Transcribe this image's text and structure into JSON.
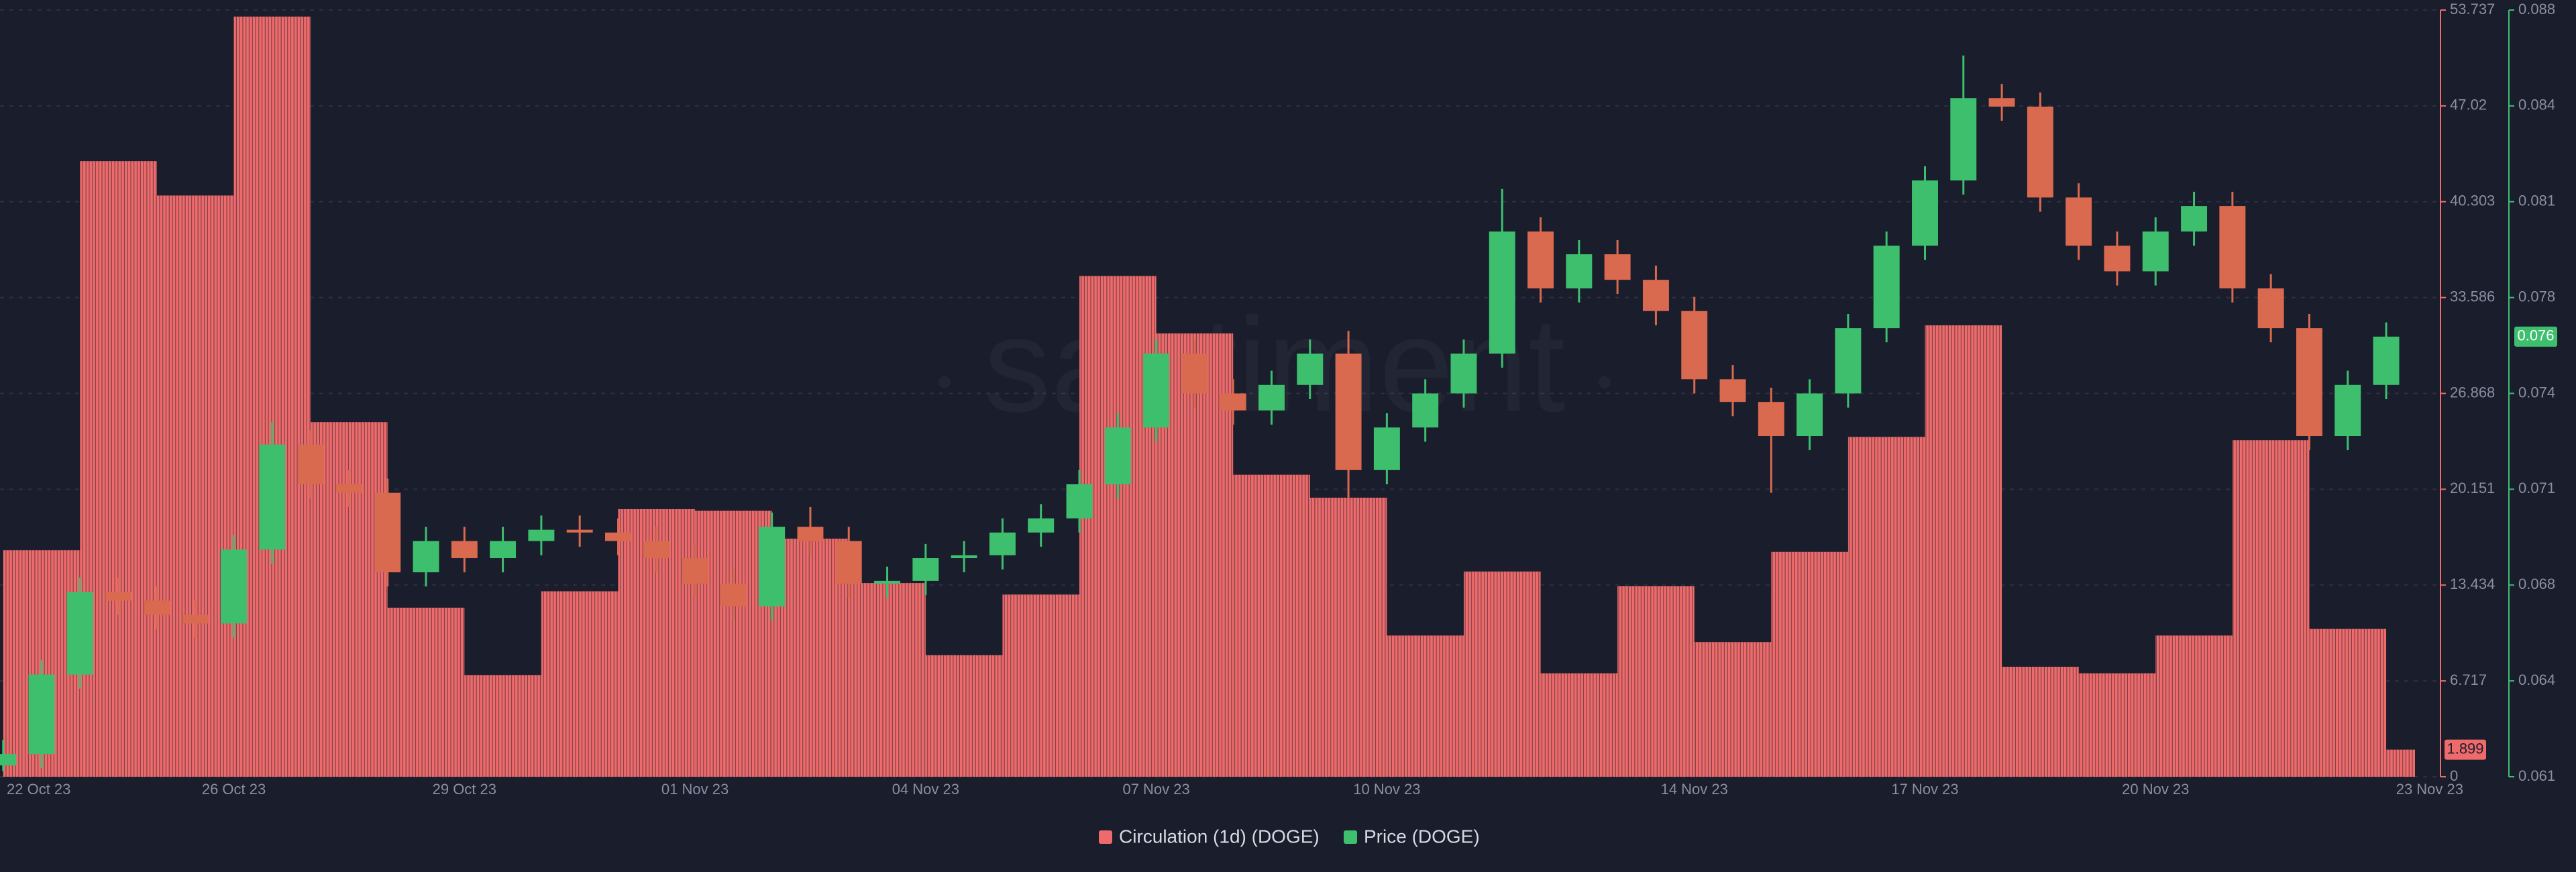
{
  "chart_data": {
    "type": "combo",
    "watermark": "santiment",
    "xlim": [
      "2023-10-22T23:00",
      "2023-11-23T09:00"
    ],
    "xticks": [
      {
        "value": "2023-10-22",
        "label": "22 Oct 23"
      },
      {
        "value": "2023-10-26",
        "label": "26 Oct 23"
      },
      {
        "value": "2023-10-29",
        "label": "29 Oct 23"
      },
      {
        "value": "2023-11-01",
        "label": "01 Nov 23"
      },
      {
        "value": "2023-11-04",
        "label": "04 Nov 23"
      },
      {
        "value": "2023-11-07",
        "label": "07 Nov 23"
      },
      {
        "value": "2023-11-10",
        "label": "10 Nov 23"
      },
      {
        "value": "2023-11-14",
        "label": "14 Nov 23"
      },
      {
        "value": "2023-11-17",
        "label": "17 Nov 23"
      },
      {
        "value": "2023-11-20",
        "label": "20 Nov 23"
      },
      {
        "value": "2023-11-23",
        "label": "23 Nov 23"
      }
    ],
    "ylim": [
      0,
      53.737
    ],
    "yticks": [
      0,
      6.717,
      13.434,
      20.151,
      26.868,
      33.586,
      40.303,
      47.02,
      53.737
    ],
    "y2lim": [
      0.0608,
      0.0878
    ],
    "y2ticks": [
      {
        "value": 0.0608,
        "label": "0.061"
      },
      {
        "value": 0.064175,
        "label": "0.064"
      },
      {
        "value": 0.06755,
        "label": "0.068"
      },
      {
        "value": 0.070925,
        "label": "0.071"
      },
      {
        "value": 0.0743,
        "label": "0.074"
      },
      {
        "value": 0.077675,
        "label": "0.078"
      },
      {
        "value": 0.08105,
        "label": "0.081"
      },
      {
        "value": 0.084425,
        "label": "0.084"
      },
      {
        "value": 0.0878,
        "label": "0.088"
      }
    ],
    "grid": true,
    "series": [
      {
        "name": "Circulation (1d) (DOGE)",
        "type": "bar",
        "axis": "y",
        "color": "#ef6b6b",
        "x": [
          "2023-10-23",
          "2023-10-24",
          "2023-10-25",
          "2023-10-26",
          "2023-10-27",
          "2023-10-28",
          "2023-10-29",
          "2023-10-30",
          "2023-10-31",
          "2023-11-01",
          "2023-11-02",
          "2023-11-03",
          "2023-11-04",
          "2023-11-05",
          "2023-11-06",
          "2023-11-07",
          "2023-11-08",
          "2023-11-09",
          "2023-11-10",
          "2023-11-11",
          "2023-11-12",
          "2023-11-13",
          "2023-11-14",
          "2023-11-15",
          "2023-11-16",
          "2023-11-17",
          "2023-11-18",
          "2023-11-19",
          "2023-11-20",
          "2023-11-21",
          "2023-11-22",
          "2023-11-23"
        ],
        "values": [
          15.88,
          43.15,
          40.74,
          53.28,
          24.86,
          11.85,
          7.13,
          13.0,
          18.76,
          18.64,
          16.69,
          13.58,
          8.52,
          12.77,
          35.1,
          31.07,
          21.17,
          19.56,
          9.9,
          14.38,
          7.25,
          13.35,
          9.44,
          15.76,
          23.82,
          31.64,
          7.71,
          7.25,
          9.9,
          23.59,
          10.36,
          1.899
        ]
      },
      {
        "name": "Price (DOGE)",
        "type": "candlestick",
        "axis": "y2",
        "color": "#3dbf6e",
        "down_color": "#d9694f",
        "x": [
          "2023-10-23T00:00",
          "2023-10-23T12:00",
          "2023-10-24T00:00",
          "2023-10-24T12:00",
          "2023-10-25T00:00",
          "2023-10-25T12:00",
          "2023-10-26T00:00",
          "2023-10-26T12:00",
          "2023-10-27T00:00",
          "2023-10-27T12:00",
          "2023-10-28T00:00",
          "2023-10-28T12:00",
          "2023-10-29T00:00",
          "2023-10-29T12:00",
          "2023-10-30T00:00",
          "2023-10-30T12:00",
          "2023-10-31T00:00",
          "2023-10-31T12:00",
          "2023-11-01T00:00",
          "2023-11-01T12:00",
          "2023-11-02T00:00",
          "2023-11-02T12:00",
          "2023-11-03T00:00",
          "2023-11-03T12:00",
          "2023-11-04T00:00",
          "2023-11-04T12:00",
          "2023-11-05T00:00",
          "2023-11-05T12:00",
          "2023-11-06T00:00",
          "2023-11-06T12:00",
          "2023-11-07T00:00",
          "2023-11-07T12:00",
          "2023-11-08T00:00",
          "2023-11-08T12:00",
          "2023-11-09T00:00",
          "2023-11-09T12:00",
          "2023-11-10T00:00",
          "2023-11-10T12:00",
          "2023-11-11T00:00",
          "2023-11-11T12:00",
          "2023-11-12T00:00",
          "2023-11-12T12:00",
          "2023-11-13T00:00",
          "2023-11-13T12:00",
          "2023-11-14T00:00",
          "2023-11-14T12:00",
          "2023-11-15T00:00",
          "2023-11-15T12:00",
          "2023-11-16T00:00",
          "2023-11-16T12:00",
          "2023-11-17T00:00",
          "2023-11-17T12:00",
          "2023-11-18T00:00",
          "2023-11-18T12:00",
          "2023-11-19T00:00",
          "2023-11-19T12:00",
          "2023-11-20T00:00",
          "2023-11-20T12:00",
          "2023-11-21T00:00",
          "2023-11-21T12:00",
          "2023-11-22T00:00",
          "2023-11-22T12:00",
          "2023-11-23T00:00"
        ],
        "open": [
          0.0612,
          0.0616,
          0.0644,
          0.0673,
          0.067,
          0.0665,
          0.0662,
          0.0688,
          0.0725,
          0.0711,
          0.0708,
          0.068,
          0.0691,
          0.0685,
          0.0691,
          0.0695,
          0.0694,
          0.0691,
          0.0685,
          0.0676,
          0.0668,
          0.0696,
          0.0691,
          0.0676,
          0.0677,
          0.0685,
          0.0686,
          0.0694,
          0.0699,
          0.0711,
          0.0731,
          0.0757,
          0.0743,
          0.0737,
          0.0746,
          0.0757,
          0.0716,
          0.0731,
          0.0743,
          0.0757,
          0.08,
          0.078,
          0.0792,
          0.0783,
          0.0772,
          0.0748,
          0.074,
          0.0728,
          0.0743,
          0.0766,
          0.0795,
          0.0818,
          0.0847,
          0.0844,
          0.0812,
          0.0795,
          0.0786,
          0.08,
          0.0809,
          0.078,
          0.0766,
          0.0728,
          0.0746
        ],
        "high": [
          0.0621,
          0.0649,
          0.0678,
          0.0678,
          0.0675,
          0.067,
          0.0693,
          0.0733,
          0.073,
          0.0716,
          0.0713,
          0.0696,
          0.0696,
          0.0696,
          0.07,
          0.07,
          0.0699,
          0.0696,
          0.069,
          0.0681,
          0.0701,
          0.0703,
          0.0696,
          0.0682,
          0.069,
          0.0691,
          0.0699,
          0.0704,
          0.0716,
          0.0736,
          0.0762,
          0.0762,
          0.0748,
          0.0751,
          0.0762,
          0.0765,
          0.0736,
          0.0748,
          0.0762,
          0.0815,
          0.0805,
          0.0797,
          0.0797,
          0.0788,
          0.0777,
          0.0753,
          0.0745,
          0.0748,
          0.0771,
          0.08,
          0.0823,
          0.0862,
          0.0852,
          0.0849,
          0.0817,
          0.08,
          0.0805,
          0.0814,
          0.0814,
          0.0785,
          0.0771,
          0.0751,
          0.0768
        ],
        "low": [
          0.061,
          0.0611,
          0.0639,
          0.0665,
          0.066,
          0.0657,
          0.0657,
          0.0683,
          0.0706,
          0.0703,
          0.0675,
          0.0675,
          0.068,
          0.068,
          0.0686,
          0.0689,
          0.0686,
          0.068,
          0.0671,
          0.0663,
          0.0663,
          0.0686,
          0.0671,
          0.0671,
          0.0672,
          0.068,
          0.0681,
          0.0689,
          0.0694,
          0.0706,
          0.0726,
          0.0738,
          0.0732,
          0.0732,
          0.0741,
          0.0706,
          0.0711,
          0.0726,
          0.0738,
          0.0752,
          0.0775,
          0.0775,
          0.0778,
          0.0767,
          0.0743,
          0.0735,
          0.0708,
          0.0723,
          0.0738,
          0.0761,
          0.079,
          0.0813,
          0.0839,
          0.0807,
          0.079,
          0.0781,
          0.0781,
          0.0795,
          0.0775,
          0.0761,
          0.0723,
          0.0723,
          0.0741
        ],
        "close": [
          0.0616,
          0.0644,
          0.0673,
          0.067,
          0.0665,
          0.0662,
          0.0688,
          0.0725,
          0.0711,
          0.0708,
          0.068,
          0.0691,
          0.0685,
          0.0691,
          0.0695,
          0.0694,
          0.0691,
          0.0685,
          0.0676,
          0.0668,
          0.0696,
          0.0691,
          0.0676,
          0.0677,
          0.0685,
          0.0686,
          0.0694,
          0.0699,
          0.0711,
          0.0731,
          0.0757,
          0.0743,
          0.0737,
          0.0746,
          0.0757,
          0.0716,
          0.0731,
          0.0743,
          0.0757,
          0.08,
          0.078,
          0.0792,
          0.0783,
          0.0772,
          0.0748,
          0.074,
          0.0728,
          0.0743,
          0.0766,
          0.0795,
          0.0818,
          0.0847,
          0.0844,
          0.0812,
          0.0795,
          0.0786,
          0.08,
          0.0809,
          0.078,
          0.0766,
          0.0728,
          0.0746,
          0.0763
        ],
        "last_label": {
          "value": 0.0763,
          "label": "0.076"
        }
      }
    ]
  }
}
